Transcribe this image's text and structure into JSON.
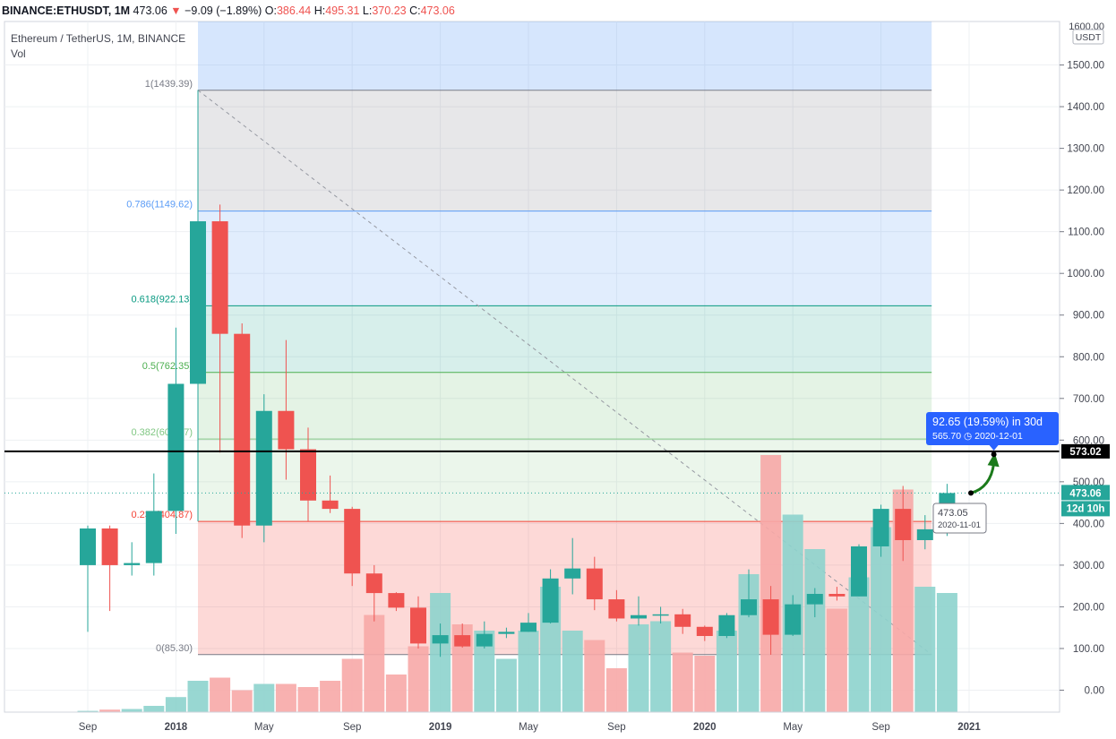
{
  "header": {
    "symbol": "BINANCE:ETHUSDT, 1M",
    "last": "473.06",
    "arrow": "▼",
    "change": "−9.09 (−1.89%)",
    "o_label": "O:",
    "o_value": "386.44",
    "h_label": "H:",
    "h_value": "495.31",
    "l_label": "L:",
    "l_value": "370.23",
    "c_label": "C:",
    "c_value": "473.06"
  },
  "legend": {
    "title": "Ethereum / TetherUS, 1M, BINANCE",
    "volume": "Vol"
  },
  "colors": {
    "up": "#26a69a",
    "down": "#ef5350",
    "up_vol": "#8dd3cd",
    "down_vol": "#f7a9a7"
  },
  "chart_data": {
    "type": "candlestick",
    "ylim": [
      -60,
      1650
    ],
    "y_ticks": [
      0,
      100,
      200,
      300,
      400,
      500,
      600,
      700,
      800,
      900,
      1000,
      1100,
      1200,
      1300,
      1400,
      1500
    ],
    "y_tick_labels": [
      "0.00",
      "100.00",
      "200.00",
      "300.00",
      "400.00",
      "500.00",
      "600.00",
      "700.00",
      "800.00",
      "900.00",
      "1000.00",
      "1100.00",
      "1200.00",
      "1300.00",
      "1400.00",
      "1500.00"
    ],
    "y_top_label": "1600.00",
    "currency": "USDT",
    "x_labels": [
      {
        "i": 0,
        "text": "Sep"
      },
      {
        "i": 4,
        "text": "2018"
      },
      {
        "i": 8,
        "text": "May"
      },
      {
        "i": 12,
        "text": "Sep"
      },
      {
        "i": 16,
        "text": "2019"
      },
      {
        "i": 20,
        "text": "May"
      },
      {
        "i": 24,
        "text": "Sep"
      },
      {
        "i": 28,
        "text": "2020"
      },
      {
        "i": 32,
        "text": "May"
      },
      {
        "i": 36,
        "text": "Sep"
      },
      {
        "i": 40,
        "text": "2021"
      }
    ],
    "candles": [
      {
        "d": "2017-08",
        "o": 300,
        "h": 395,
        "l": 140,
        "c": 388,
        "v": 2
      },
      {
        "d": "2017-09",
        "o": 388,
        "h": 395,
        "l": 190,
        "c": 300,
        "v": 4
      },
      {
        "d": "2017-10",
        "o": 300,
        "h": 355,
        "l": 275,
        "c": 305,
        "v": 5
      },
      {
        "d": "2017-11",
        "o": 305,
        "h": 520,
        "l": 275,
        "c": 430,
        "v": 10
      },
      {
        "d": "2017-12",
        "o": 430,
        "h": 870,
        "l": 375,
        "c": 735,
        "v": 24
      },
      {
        "d": "2018-01",
        "o": 735,
        "h": 1440,
        "l": 715,
        "c": 1125,
        "v": 50
      },
      {
        "d": "2018-02",
        "o": 1125,
        "h": 1165,
        "l": 570,
        "c": 855,
        "v": 55
      },
      {
        "d": "2018-03",
        "o": 855,
        "h": 880,
        "l": 365,
        "c": 395,
        "v": 35
      },
      {
        "d": "2018-04",
        "o": 395,
        "h": 710,
        "l": 355,
        "c": 670,
        "v": 45
      },
      {
        "d": "2018-05",
        "o": 670,
        "h": 840,
        "l": 505,
        "c": 578,
        "v": 45
      },
      {
        "d": "2018-06",
        "o": 578,
        "h": 630,
        "l": 405,
        "c": 455,
        "v": 40
      },
      {
        "d": "2018-07",
        "o": 455,
        "h": 515,
        "l": 425,
        "c": 435,
        "v": 50
      },
      {
        "d": "2018-08",
        "o": 435,
        "h": 440,
        "l": 250,
        "c": 280,
        "v": 85
      },
      {
        "d": "2018-09",
        "o": 280,
        "h": 300,
        "l": 165,
        "c": 233,
        "v": 155
      },
      {
        "d": "2018-10",
        "o": 233,
        "h": 235,
        "l": 190,
        "c": 198,
        "v": 60
      },
      {
        "d": "2018-11",
        "o": 198,
        "h": 225,
        "l": 100,
        "c": 112,
        "v": 105
      },
      {
        "d": "2018-12",
        "o": 112,
        "h": 160,
        "l": 80,
        "c": 132,
        "v": 190
      },
      {
        "d": "2019-01",
        "o": 132,
        "h": 160,
        "l": 102,
        "c": 105,
        "v": 140
      },
      {
        "d": "2019-02",
        "o": 105,
        "h": 165,
        "l": 100,
        "c": 135,
        "v": 130
      },
      {
        "d": "2019-03",
        "o": 135,
        "h": 150,
        "l": 125,
        "c": 140,
        "v": 85
      },
      {
        "d": "2019-04",
        "o": 140,
        "h": 185,
        "l": 140,
        "c": 162,
        "v": 130
      },
      {
        "d": "2019-05",
        "o": 162,
        "h": 290,
        "l": 160,
        "c": 268,
        "v": 200
      },
      {
        "d": "2019-06",
        "o": 268,
        "h": 365,
        "l": 230,
        "c": 292,
        "v": 130
      },
      {
        "d": "2019-07",
        "o": 292,
        "h": 320,
        "l": 192,
        "c": 218,
        "v": 115
      },
      {
        "d": "2019-08",
        "o": 218,
        "h": 240,
        "l": 165,
        "c": 172,
        "v": 70
      },
      {
        "d": "2019-09",
        "o": 172,
        "h": 225,
        "l": 155,
        "c": 180,
        "v": 140
      },
      {
        "d": "2019-10",
        "o": 180,
        "h": 200,
        "l": 160,
        "c": 182,
        "v": 145
      },
      {
        "d": "2019-11",
        "o": 182,
        "h": 195,
        "l": 135,
        "c": 152,
        "v": 95
      },
      {
        "d": "2019-12",
        "o": 152,
        "h": 155,
        "l": 118,
        "c": 130,
        "v": 90
      },
      {
        "d": "2020-01",
        "o": 130,
        "h": 185,
        "l": 125,
        "c": 180,
        "v": 130
      },
      {
        "d": "2020-02",
        "o": 180,
        "h": 290,
        "l": 175,
        "c": 218,
        "v": 220
      },
      {
        "d": "2020-03",
        "o": 218,
        "h": 250,
        "l": 85,
        "c": 133,
        "v": 410
      },
      {
        "d": "2020-04",
        "o": 133,
        "h": 228,
        "l": 130,
        "c": 206,
        "v": 315
      },
      {
        "d": "2020-05",
        "o": 206,
        "h": 245,
        "l": 175,
        "c": 231,
        "v": 260
      },
      {
        "d": "2020-06",
        "o": 231,
        "h": 248,
        "l": 215,
        "c": 225,
        "v": 165
      },
      {
        "d": "2020-07",
        "o": 225,
        "h": 350,
        "l": 225,
        "c": 345,
        "v": 215
      },
      {
        "d": "2020-08",
        "o": 345,
        "h": 445,
        "l": 320,
        "c": 435,
        "v": 295
      },
      {
        "d": "2020-09",
        "o": 435,
        "h": 490,
        "l": 310,
        "c": 360,
        "v": 355
      },
      {
        "d": "2020-10",
        "o": 360,
        "h": 420,
        "l": 338,
        "c": 386,
        "v": 200
      },
      {
        "d": "2020-11",
        "o": 386,
        "h": 495,
        "l": 370,
        "c": 473,
        "v": 190
      }
    ]
  },
  "fib": {
    "levels": [
      {
        "label": "1(1439.39)",
        "value": 1439.39,
        "color": "#787b86",
        "fill": "rgba(120,123,134,0.18)"
      },
      {
        "label": "0.786(1149.62)",
        "value": 1149.62,
        "color": "#5b9cf6",
        "fill": "rgba(91,156,246,0.18)"
      },
      {
        "label": "0.618(922.13)",
        "value": 922.13,
        "color": "#089981",
        "fill": "rgba(8,153,129,0.16)"
      },
      {
        "label": "0.5(762.35)",
        "value": 762.35,
        "color": "#4caf50",
        "fill": "rgba(76,175,80,0.15)"
      },
      {
        "label": "0.382(602.57)",
        "value": 602.57,
        "color": "#81c784",
        "fill": "rgba(129,199,132,0.16)"
      },
      {
        "label": "0.236(404.87)",
        "value": 404.87,
        "color": "#f44336",
        "fill": "rgba(244,67,54,0.20)"
      },
      {
        "label": "0(85.30)",
        "value": 85.3,
        "color": "#787b86",
        "fill": null
      }
    ],
    "top_fill": "rgba(91,156,246,0.25)"
  },
  "markers": {
    "horizontal_line": "573.02",
    "last_price": "473.06",
    "countdown": "12d 10h",
    "point_price": "473.05",
    "point_date": "2020-11-01",
    "projection_main": "92.65 (19.59%) in 30d",
    "projection_sub": "565.70 ◷ 2020-12-01"
  }
}
